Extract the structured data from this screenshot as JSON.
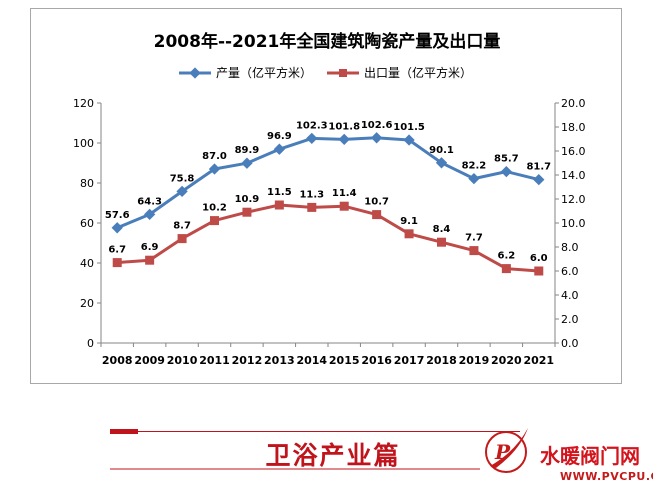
{
  "chart_data": {
    "type": "line",
    "title": "2008年--2021年全国建筑陶瓷产量及出口量",
    "categories": [
      "2008",
      "2009",
      "2010",
      "2011",
      "2012",
      "2013",
      "2014",
      "2015",
      "2016",
      "2017",
      "2018",
      "2019",
      "2020",
      "2021"
    ],
    "series": [
      {
        "name": "产量（亿平方米）",
        "axis": "left",
        "color": "#4a7ebb",
        "values": [
          57.6,
          64.3,
          75.8,
          87.0,
          89.9,
          96.9,
          102.3,
          101.8,
          102.6,
          101.5,
          90.1,
          82.2,
          85.7,
          81.7
        ],
        "labels": [
          "57.6",
          "64.3",
          "75.8",
          "87.0",
          "89.9",
          "96.9",
          "102.3",
          "101.8",
          "102.6",
          "101.5",
          "90.1",
          "82.2",
          "85.7",
          "81.7"
        ]
      },
      {
        "name": "出口量（亿平方米）",
        "axis": "right",
        "color": "#be4b48",
        "values": [
          6.7,
          6.9,
          8.7,
          10.2,
          10.9,
          11.5,
          11.3,
          11.4,
          10.7,
          9.1,
          8.4,
          7.7,
          6.2,
          6.0
        ],
        "labels": [
          "6.7",
          "6.9",
          "8.7",
          "10.2",
          "10.9",
          "11.5",
          "11.3",
          "11.4",
          "10.7",
          "9.1",
          "8.4",
          "7.7",
          "6.2",
          "6.0"
        ]
      }
    ],
    "y_left": {
      "min": 0,
      "max": 120,
      "ticks": [
        "0",
        "20",
        "40",
        "60",
        "80",
        "100",
        "120"
      ]
    },
    "y_right": {
      "min": 0,
      "max": 20,
      "ticks": [
        "0.0",
        "2.0",
        "4.0",
        "6.0",
        "8.0",
        "10.0",
        "12.0",
        "14.0",
        "16.0",
        "18.0",
        "20.0"
      ]
    },
    "grid": false,
    "legend": "top-center"
  },
  "banner": {
    "text": "卫浴产业篇",
    "color": "#c0141c"
  },
  "brand": {
    "name": "水暖阀门网",
    "url": "WWW.PVCPU.COM"
  }
}
